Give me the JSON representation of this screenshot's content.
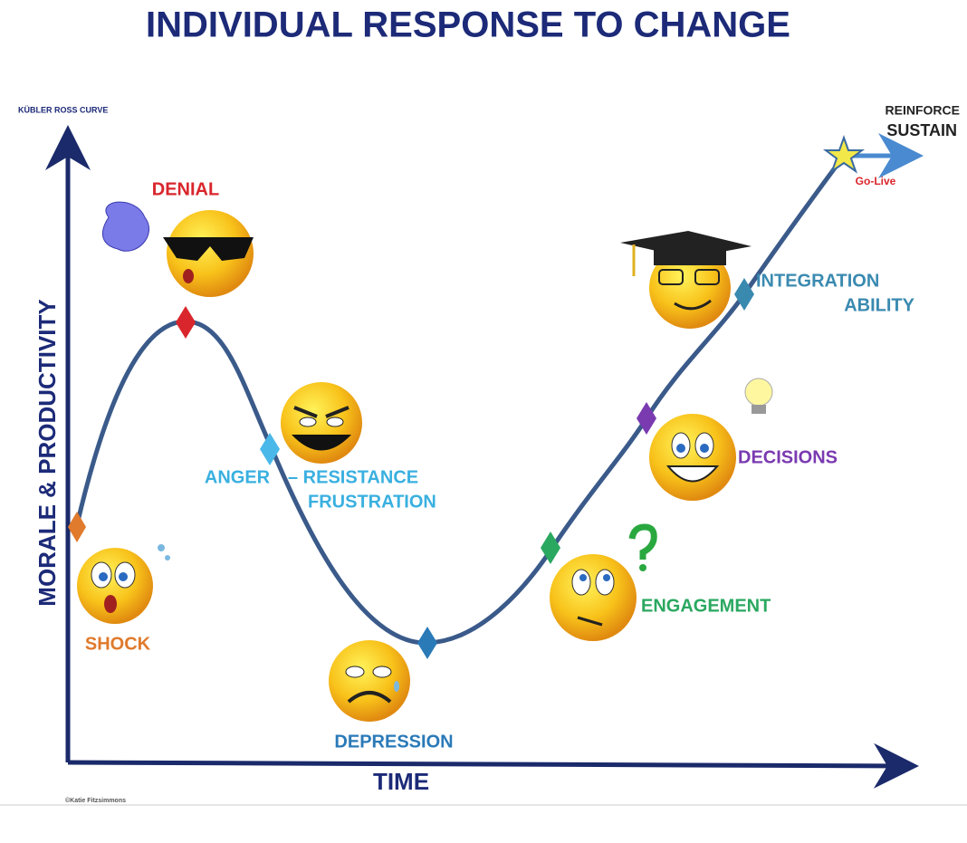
{
  "header": {
    "title": "INDIVIDUAL RESPONSE TO CHANGE",
    "subtitle": "KÜBLER ROSS CURVE"
  },
  "axes": {
    "y": "MORALE & PRODUCTIVITY",
    "x": "TIME"
  },
  "stages": {
    "shock": "SHOCK",
    "denial": "DENIAL",
    "anger": "ANGER",
    "resistance": "– RESISTANCE",
    "frustration": "FRUSTRATION",
    "depression": "DEPRESSION",
    "engagement": "ENGAGEMENT",
    "decisions": "DECISIONS",
    "integration": "INTEGRATION",
    "ability": "ABILITY"
  },
  "end": {
    "reinforce": "REINFORCE",
    "sustain": "SUSTAIN",
    "golive": "Go-Live"
  },
  "credit": "©Katie Fitzsimmons"
}
